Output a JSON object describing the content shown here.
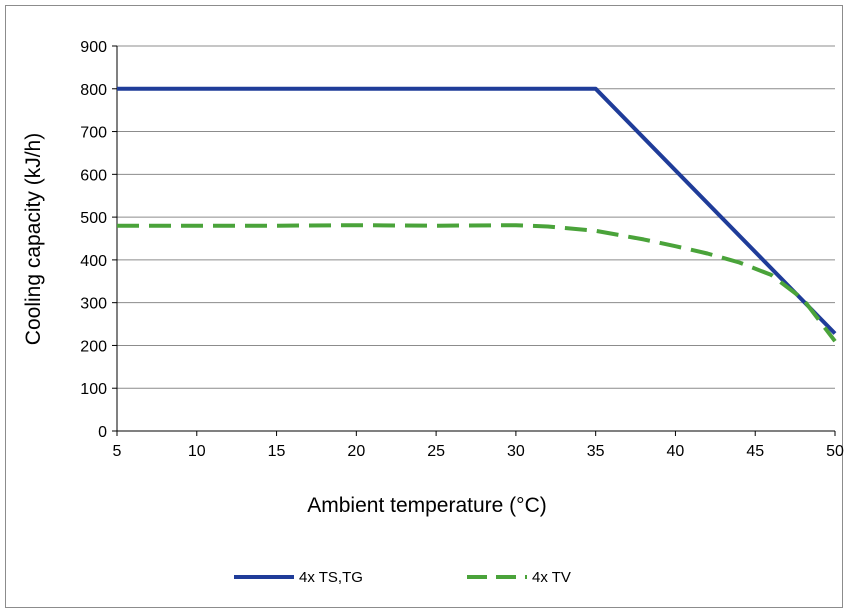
{
  "chart_data": {
    "type": "line",
    "title": "",
    "xlabel": "Ambient temperature (°C)",
    "ylabel": "Cooling capacity (kJ/h)",
    "xlim": [
      5,
      50
    ],
    "ylim": [
      0,
      900
    ],
    "xticks": [
      5,
      10,
      15,
      20,
      25,
      30,
      35,
      40,
      45,
      50
    ],
    "yticks": [
      0,
      100,
      200,
      300,
      400,
      500,
      600,
      700,
      800,
      900
    ],
    "grid": "horizontal",
    "legend_position": "bottom",
    "series": [
      {
        "name": "4x TS,TG",
        "color": "#1f3c99",
        "style": "solid",
        "x": [
          5,
          35,
          50
        ],
        "y": [
          800,
          800,
          228
        ]
      },
      {
        "name": "4x TV",
        "color": "#4aa33a",
        "style": "dashed",
        "x": [
          5,
          10,
          15,
          20,
          25,
          30,
          32,
          35,
          38,
          40,
          42,
          44,
          46,
          48,
          50
        ],
        "y": [
          480,
          480,
          480,
          481,
          480,
          481,
          478,
          468,
          448,
          432,
          415,
          394,
          365,
          308,
          210
        ]
      }
    ]
  }
}
